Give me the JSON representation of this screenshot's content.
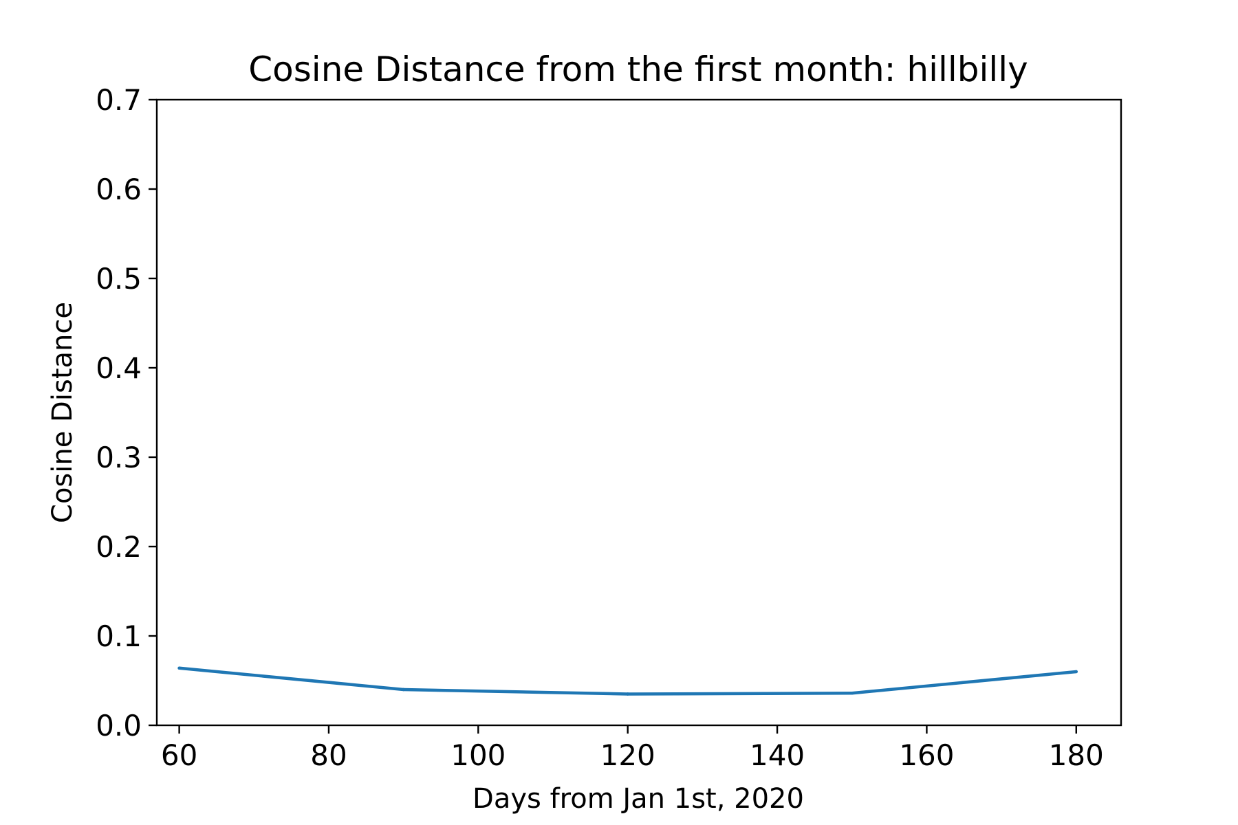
{
  "chart_data": {
    "type": "line",
    "title": "Cosine Distance from the first month: hillbilly",
    "xlabel": "Days from Jan 1st, 2020",
    "ylabel": "Cosine Distance",
    "xlim": [
      57,
      186
    ],
    "ylim": [
      0,
      0.7
    ],
    "x_ticks": [
      60,
      80,
      100,
      120,
      140,
      160,
      180
    ],
    "x_tick_labels": [
      "60",
      "80",
      "100",
      "120",
      "140",
      "160",
      "180"
    ],
    "y_ticks": [
      0.0,
      0.1,
      0.2,
      0.3,
      0.4,
      0.5,
      0.6,
      0.7
    ],
    "y_tick_labels": [
      "0.0",
      "0.1",
      "0.2",
      "0.3",
      "0.4",
      "0.5",
      "0.6",
      "0.7"
    ],
    "grid": false,
    "series": [
      {
        "color": "#1f77b4",
        "x": [
          60,
          90,
          120,
          150,
          180
        ],
        "y": [
          0.064,
          0.04,
          0.035,
          0.036,
          0.06
        ]
      }
    ]
  }
}
